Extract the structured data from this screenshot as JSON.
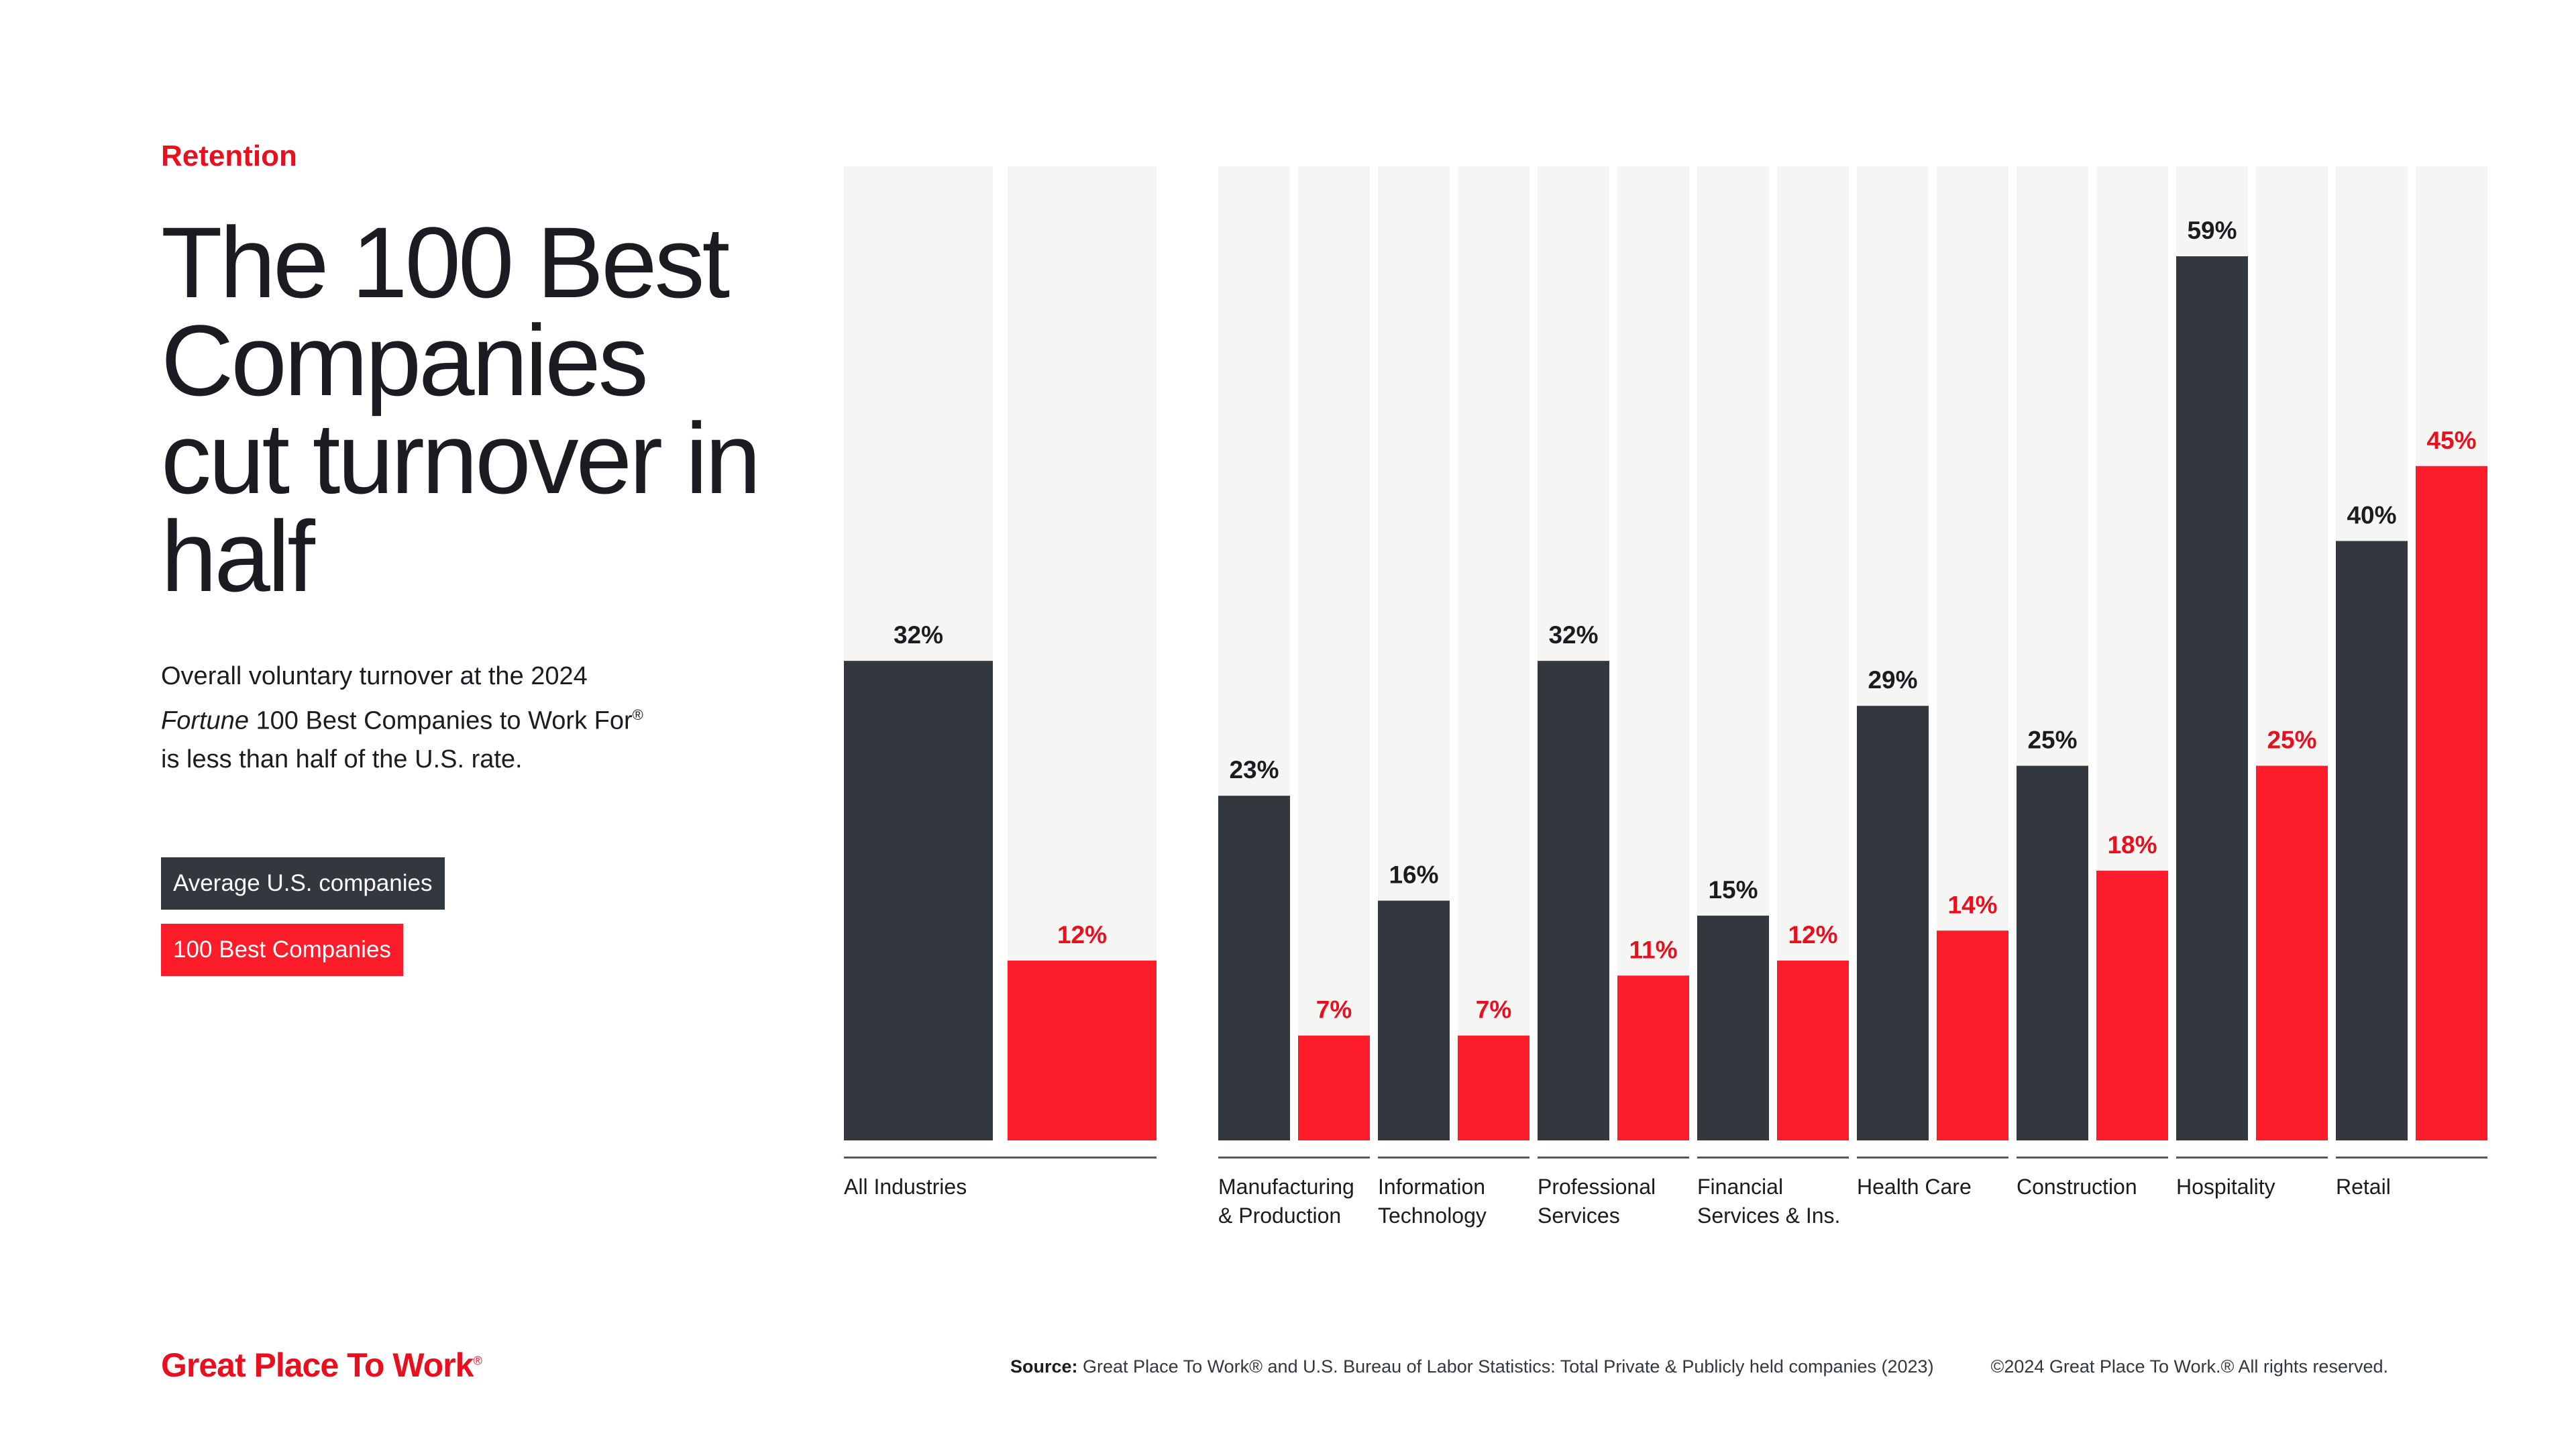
{
  "eyebrow": "Retention",
  "headline": "The 100 Best Companies cut turnover in half",
  "description": {
    "line1": "Overall voluntary turnover at the 2024",
    "italic": "Fortune",
    "line2_rest": " 100 Best Companies to Work For",
    "reg": "®",
    "line3": "is less than half of the U.S. rate."
  },
  "legend": {
    "average": "Average U.S. companies",
    "best": "100 Best Companies"
  },
  "colors": {
    "average": "#33373e",
    "best": "#fc1c2a",
    "background_column": "#f5f5f4",
    "best_label": "#e8101e"
  },
  "chart_data": {
    "type": "bar",
    "ylim": [
      0,
      65
    ],
    "categories": [
      "All Industries",
      "Manufacturing & Production",
      "Information Technology",
      "Professional Services",
      "Financial Services & Ins.",
      "Health Care",
      "Construction",
      "Hospitality",
      "Retail"
    ],
    "category_lines": [
      [
        "All Industries"
      ],
      [
        "Manufacturing",
        "& Production"
      ],
      [
        "Information",
        "Technology"
      ],
      [
        "Professional",
        "Services"
      ],
      [
        "Financial",
        "Services & Ins."
      ],
      [
        "Health Care"
      ],
      [
        "Construction"
      ],
      [
        "Hospitality"
      ],
      [
        "Retail"
      ]
    ],
    "series": [
      {
        "name": "Average U.S. companies",
        "values": [
          32,
          23,
          16,
          32,
          15,
          29,
          25,
          59,
          40
        ],
        "labels": [
          "32%",
          "23%",
          "16%",
          "32%",
          "15%",
          "29%",
          "25%",
          "59%",
          "40%"
        ]
      },
      {
        "name": "100 Best Companies",
        "values": [
          12,
          7,
          7,
          11,
          12,
          14,
          18,
          25,
          45
        ],
        "labels": [
          "12%",
          "7%",
          "7%",
          "11%",
          "12%",
          "14%",
          "18%",
          "25%",
          "45%"
        ]
      }
    ]
  },
  "footer": {
    "logo": "Great Place To Work",
    "logo_mark": "®",
    "source_label": "Source:",
    "source_text": " Great Place To Work® and U.S. Bureau of Labor Statistics: Total Private & Publicly held companies (2023)",
    "copyright": "©2024 Great Place To Work.® All rights reserved."
  }
}
